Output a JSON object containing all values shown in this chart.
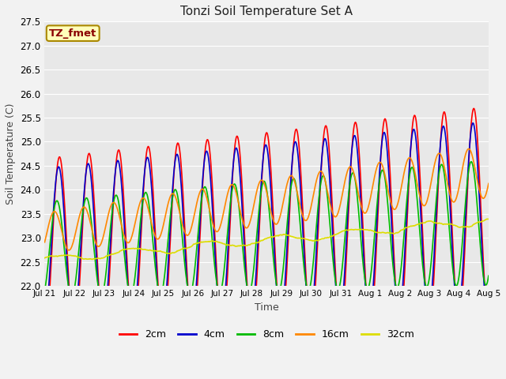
{
  "title": "Tonzi Soil Temperature Set A",
  "xlabel": "Time",
  "ylabel": "Soil Temperature (C)",
  "ylim": [
    22.0,
    27.5
  ],
  "annotation": "TZ_fmet",
  "legend": [
    "2cm",
    "4cm",
    "8cm",
    "16cm",
    "32cm"
  ],
  "line_colors": [
    "#ff0000",
    "#0000cd",
    "#00bb00",
    "#ff8800",
    "#dddd00"
  ],
  "xtick_labels": [
    "Jul 21",
    "Jul 22",
    "Jul 23",
    "Jul 24",
    "Jul 25",
    "Jul 26",
    "Jul 27",
    "Jul 28",
    "Jul 29",
    "Jul 30",
    "Jul 31",
    "Aug 1",
    "Aug 2",
    "Aug 3",
    "Aug 4",
    "Aug 5"
  ],
  "yticks": [
    22.0,
    22.5,
    23.0,
    23.5,
    24.0,
    24.5,
    25.0,
    25.5,
    26.0,
    26.5,
    27.0,
    27.5
  ],
  "fig_bg": "#f2f2f2",
  "plot_bg": "#e8e8e8",
  "grid_color": "#ffffff"
}
